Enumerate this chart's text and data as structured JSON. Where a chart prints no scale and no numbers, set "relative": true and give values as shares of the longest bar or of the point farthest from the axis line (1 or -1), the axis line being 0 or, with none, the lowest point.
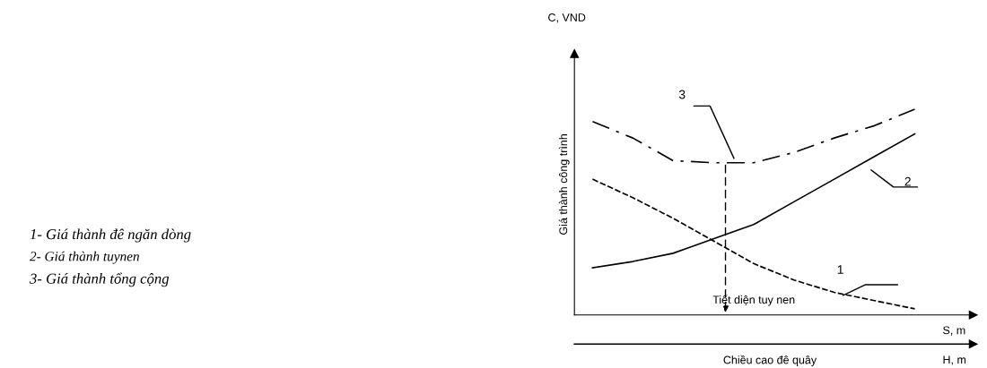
{
  "chart_data": {
    "type": "line",
    "relative": true,
    "ylabel": "Giá thành công trình",
    "xlabel": "Tiết diện tuy nen",
    "categories": [
      null,
      null,
      null,
      null,
      null,
      null,
      null,
      null,
      null
    ],
    "series": [
      {
        "name": "1",
        "color": "#000000",
        "line_style": "dashed",
        "values": [
          0.66,
          0.57,
          0.47,
          0.36,
          0.25,
          0.17,
          0.11,
          0.07,
          0.03
        ]
      },
      {
        "name": "2",
        "color": "#000000",
        "line_style": "solid",
        "values": [
          0.23,
          0.26,
          0.3,
          0.37,
          0.44,
          0.55,
          0.66,
          0.77,
          0.88
        ]
      },
      {
        "name": "3",
        "color": "#000000",
        "line_style": "dashdot",
        "values": [
          0.94,
          0.86,
          0.75,
          0.74,
          0.74,
          0.79,
          0.86,
          0.92,
          1.0
        ]
      }
    ],
    "annotations": [
      "1- Giá thành đê ngăn dòng",
      "2- Giá thành tuynen",
      "3- Giá thành tổng cộng",
      "C, VND",
      "S, m",
      "H, m",
      "Chiều cao đê quây"
    ]
  }
}
